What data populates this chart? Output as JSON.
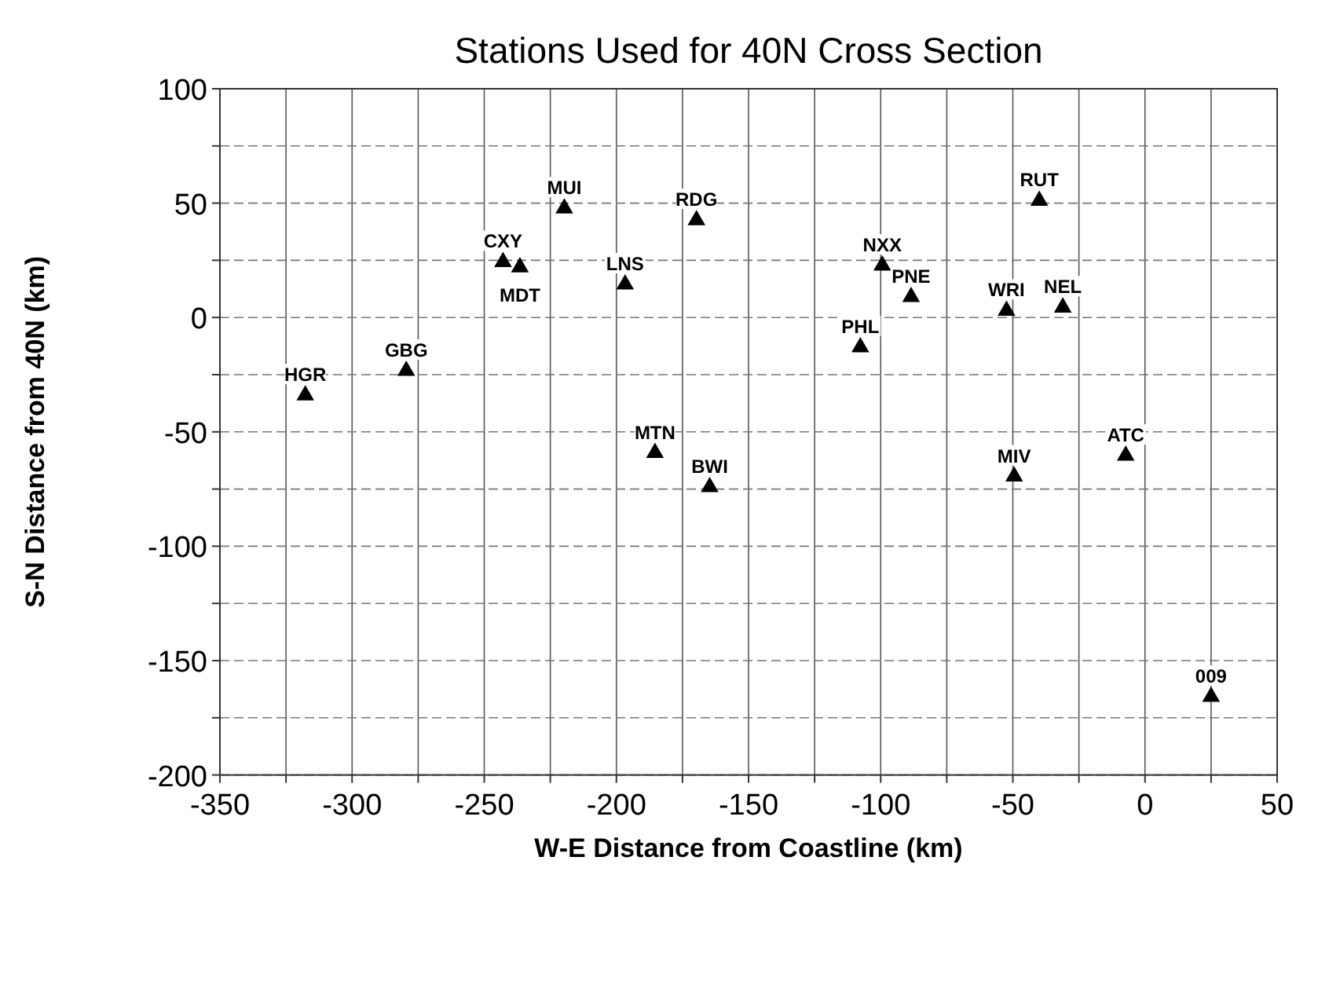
{
  "chart_data": {
    "type": "scatter",
    "title": "Stations Used for 40N Cross Section",
    "xlabel": "W-E Distance from Coastline (km)",
    "ylabel": "S-N Distance from 40N (km)",
    "x": [
      -317.7,
      -279.5,
      -242.9,
      -236.5,
      -219.7,
      -196.7,
      -169.7,
      -185.4,
      -164.7,
      -99.4,
      -88.5,
      -107.7,
      -40,
      -52.4,
      -31.1,
      -49.5,
      -7.3,
      25
    ],
    "series": [
      {
        "color": "#000000",
        "values": [
          -34,
          -23.3,
          24.3,
          22,
          47.7,
          14.5,
          42.6,
          -59.2,
          -74.1,
          22.7,
          9,
          -13,
          51.1,
          3,
          4.4,
          -69.5,
          -60.4,
          -165.8
        ]
      }
    ],
    "annotations": [
      {
        "text": "HGR",
        "x": -317.7,
        "y": -34
      },
      {
        "text": "GBG",
        "x": -279.5,
        "y": -23.3
      },
      {
        "text": "CXY",
        "x": -242.9,
        "y": 24.3
      },
      {
        "text": "MDT",
        "x": -236.5,
        "y": 22
      },
      {
        "text": "MUI",
        "x": -219.7,
        "y": 47.7
      },
      {
        "text": "LNS",
        "x": -196.7,
        "y": 14.5
      },
      {
        "text": "RDG",
        "x": -169.7,
        "y": 42.6
      },
      {
        "text": "MTN",
        "x": -185.4,
        "y": -59.2
      },
      {
        "text": "BWI",
        "x": -164.7,
        "y": -74.1
      },
      {
        "text": "NXX",
        "x": -99.4,
        "y": 22.7
      },
      {
        "text": "PNE",
        "x": -88.5,
        "y": 9
      },
      {
        "text": "PHL",
        "x": -107.7,
        "y": -13
      },
      {
        "text": "RUT",
        "x": -40,
        "y": 51.1
      },
      {
        "text": "WRI",
        "x": -52.4,
        "y": 3
      },
      {
        "text": "NEL",
        "x": -31.1,
        "y": 4.4
      },
      {
        "text": "MIV",
        "x": -49.5,
        "y": -69.5
      },
      {
        "text": "ATC",
        "x": -7.3,
        "y": -60.4
      },
      {
        "text": "009",
        "x": 25,
        "y": -165.8
      }
    ],
    "xlim": [
      -350,
      50
    ],
    "ylim": [
      -200,
      100
    ],
    "xticks": [
      -350,
      {
        "value": -325,
        "label": null
      },
      -300,
      {
        "value": -275,
        "label": null
      },
      -250,
      {
        "value": -225,
        "label": null
      },
      -200,
      {
        "value": -175,
        "label": null
      },
      -150,
      {
        "value": -125,
        "label": null
      },
      -100,
      {
        "value": -75,
        "label": null
      },
      -50,
      {
        "value": -25,
        "label": null
      },
      0,
      {
        "value": 25,
        "label": null
      },
      50
    ],
    "yticks": [
      -200,
      {
        "value": -175,
        "label": null
      },
      -150,
      {
        "value": -125,
        "label": null
      },
      -100,
      {
        "value": -75,
        "label": null
      },
      -50,
      {
        "value": -25,
        "label": null
      },
      0,
      {
        "value": 25,
        "label": null
      },
      50,
      {
        "value": 75,
        "label": null
      },
      100
    ],
    "grid": true,
    "marker": "triangle"
  }
}
